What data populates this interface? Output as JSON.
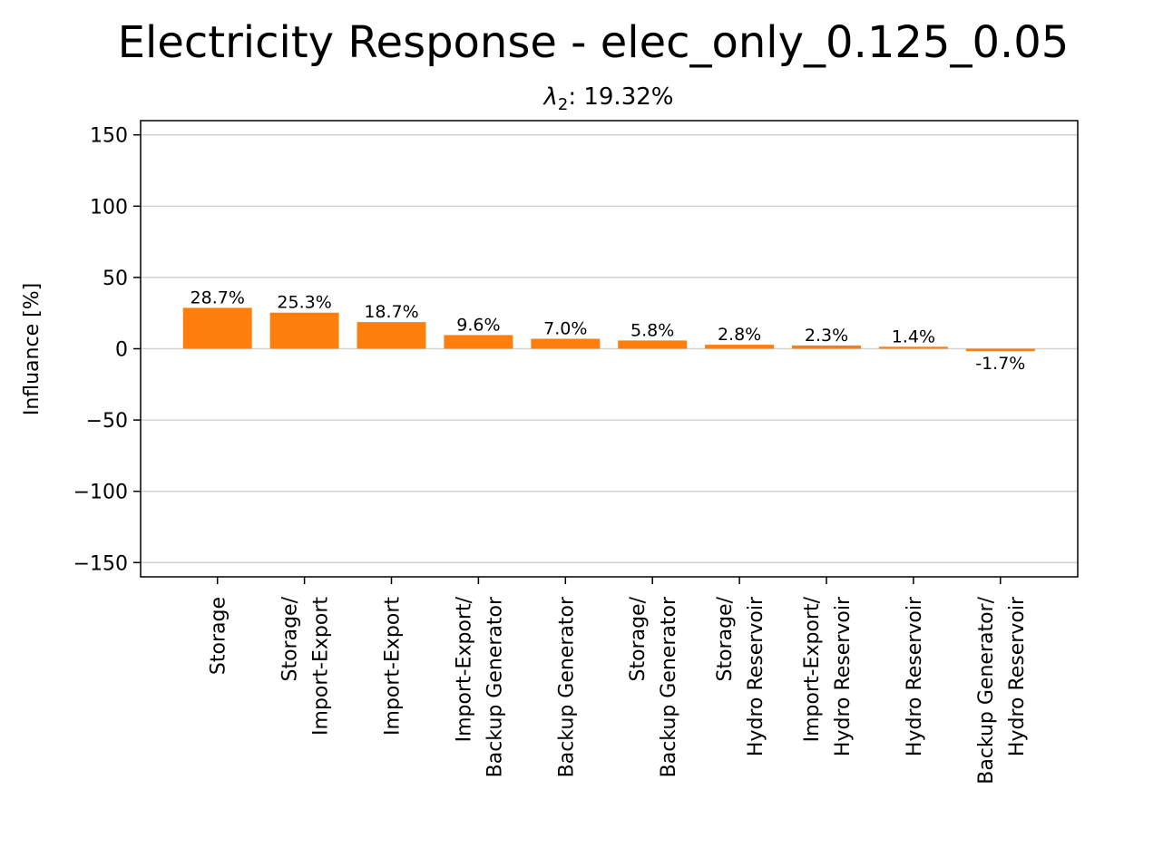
{
  "chart_data": {
    "type": "bar",
    "title": "Electricity Response - elec_only_0.125_0.05",
    "subtitle": {
      "symbol": "λ",
      "subscript": "2",
      "text": ": 19.32%"
    },
    "ylabel": "Influance [%]",
    "xlabel": "",
    "ylim": [
      -160,
      160
    ],
    "yticks": [
      -150,
      -100,
      -50,
      0,
      50,
      100,
      150
    ],
    "grid": "horizontal",
    "bar_color": "#ff7f0e",
    "categories": [
      [
        "Storage"
      ],
      [
        "Storage/",
        "Import-Export"
      ],
      [
        "Import-Export"
      ],
      [
        "Import-Export/",
        "Backup Generator"
      ],
      [
        "Backup Generator"
      ],
      [
        "Storage/",
        "Backup Generator"
      ],
      [
        "Storage/",
        "Hydro Reservoir"
      ],
      [
        "Import-Export/",
        "Hydro Reservoir"
      ],
      [
        "Hydro Reservoir"
      ],
      [
        "Backup Generator/",
        "Hydro Reservoir"
      ]
    ],
    "values": [
      28.7,
      25.3,
      18.7,
      9.6,
      7.0,
      5.8,
      2.8,
      2.3,
      1.4,
      -1.7
    ],
    "value_labels": [
      "28.7%",
      "25.3%",
      "18.7%",
      "9.6%",
      "7.0%",
      "5.8%",
      "2.8%",
      "2.3%",
      "1.4%",
      "-1.7%"
    ]
  }
}
